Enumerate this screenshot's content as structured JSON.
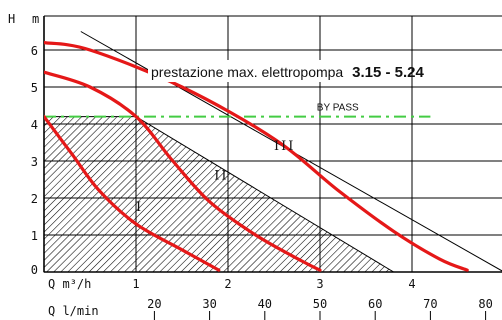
{
  "chart_data": {
    "type": "line",
    "title": "prestazione max. elettropompa",
    "title_model": "3.15 - 5.24",
    "ylabel_h": "H",
    "ylabel_m": "m",
    "xlabel": "Q  m³/h",
    "xlabel2": "Q  l/min",
    "xlim": [
      0,
      5
    ],
    "ylim": [
      0,
      6.5
    ],
    "x_ticks": [
      "1",
      "2",
      "3",
      "4"
    ],
    "y_ticks": [
      "0",
      "1",
      "2",
      "3",
      "4",
      "5",
      "6"
    ],
    "x2_ticks": [
      "20",
      "30",
      "40",
      "50",
      "60",
      "70",
      "80"
    ],
    "grid": true,
    "series": [
      {
        "name": "I",
        "points": [
          [
            0,
            4.2
          ],
          [
            0.3,
            3.2
          ],
          [
            0.6,
            2.2
          ],
          [
            1.0,
            1.3
          ],
          [
            1.5,
            0.6
          ],
          [
            1.9,
            0.05
          ]
        ]
      },
      {
        "name": "II",
        "points": [
          [
            0,
            5.4
          ],
          [
            0.5,
            5.0
          ],
          [
            1.0,
            4.2
          ],
          [
            1.4,
            3.0
          ],
          [
            1.8,
            1.9
          ],
          [
            2.3,
            1.0
          ],
          [
            2.8,
            0.3
          ],
          [
            3.0,
            0.05
          ]
        ]
      },
      {
        "name": "III",
        "points": [
          [
            0,
            6.2
          ],
          [
            0.5,
            6.0
          ],
          [
            1.5,
            5.0
          ],
          [
            2.5,
            3.6
          ],
          [
            3.2,
            2.2
          ],
          [
            3.8,
            1.1
          ],
          [
            4.3,
            0.35
          ],
          [
            4.6,
            0.05
          ]
        ]
      }
    ],
    "bypass": {
      "label": "BY PASS",
      "y": 4.2,
      "x_start": 0,
      "x_end": 4.2,
      "color": "#44cc44"
    },
    "shaded_region": [
      [
        0,
        4.2
      ],
      [
        1.0,
        4.2
      ],
      [
        3.8,
        0
      ],
      [
        0,
        0
      ]
    ],
    "diagonal_line": [
      [
        0.4,
        6.5
      ],
      [
        5.0,
        0
      ]
    ],
    "colors": {
      "curve": "#e51818",
      "grid": "#000000",
      "bypass": "#44cc44"
    }
  }
}
